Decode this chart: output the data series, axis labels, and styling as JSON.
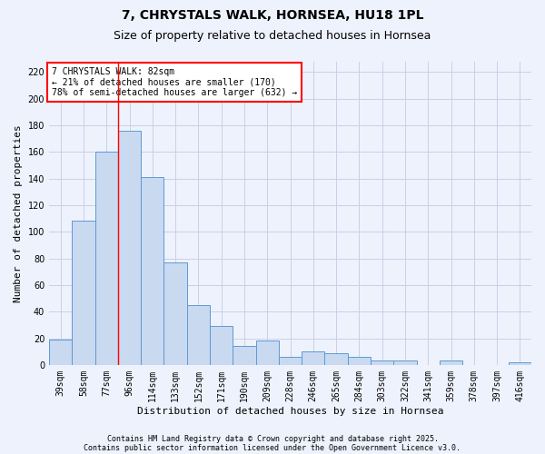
{
  "title1": "7, CHRYSTALS WALK, HORNSEA, HU18 1PL",
  "title2": "Size of property relative to detached houses in Hornsea",
  "xlabel": "Distribution of detached houses by size in Hornsea",
  "ylabel": "Number of detached properties",
  "categories": [
    "39sqm",
    "58sqm",
    "77sqm",
    "96sqm",
    "114sqm",
    "133sqm",
    "152sqm",
    "171sqm",
    "190sqm",
    "209sqm",
    "228sqm",
    "246sqm",
    "265sqm",
    "284sqm",
    "303sqm",
    "322sqm",
    "341sqm",
    "359sqm",
    "378sqm",
    "397sqm",
    "416sqm"
  ],
  "values": [
    19,
    108,
    160,
    176,
    141,
    77,
    45,
    29,
    14,
    18,
    6,
    10,
    9,
    6,
    3,
    3,
    0,
    3,
    0,
    0,
    2
  ],
  "bar_color": "#c9d9f0",
  "bar_edge_color": "#5b9bd5",
  "red_line_x": 2.5,
  "annotation_text": "7 CHRYSTALS WALK: 82sqm\n← 21% of detached houses are smaller (170)\n78% of semi-detached houses are larger (632) →",
  "annotation_box_color": "white",
  "annotation_box_edge": "red",
  "footer1": "Contains HM Land Registry data © Crown copyright and database right 2025.",
  "footer2": "Contains public sector information licensed under the Open Government Licence v3.0.",
  "ylim": [
    0,
    228
  ],
  "yticks": [
    0,
    20,
    40,
    60,
    80,
    100,
    120,
    140,
    160,
    180,
    200,
    220
  ],
  "bg_color": "#eef2fc",
  "grid_color": "#c8d0e8",
  "title1_fontsize": 10,
  "title2_fontsize": 9,
  "ylabel_fontsize": 8,
  "xlabel_fontsize": 8,
  "annotation_fontsize": 7,
  "tick_fontsize": 7,
  "footer_fontsize": 6
}
